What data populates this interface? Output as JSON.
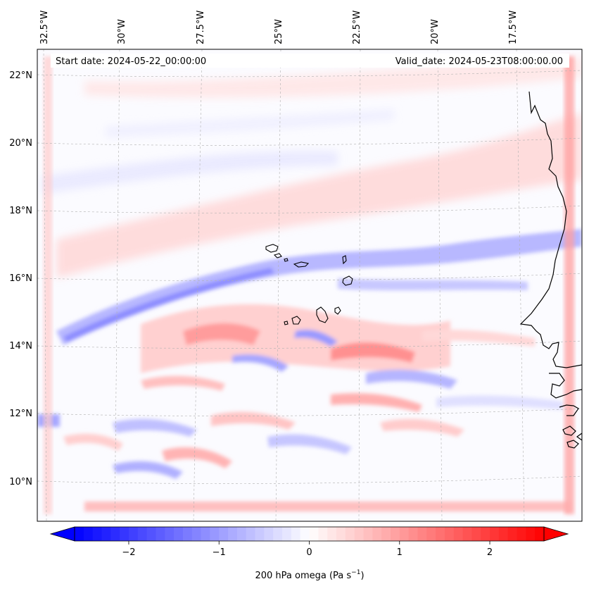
{
  "map": {
    "start_date_label": "Start date: 2024-05-22_00:00:00",
    "valid_date_label": "Valid_date: 2024-05-23T08:00:00.00",
    "top_longitude_labels": [
      "32.5°W",
      "30°W",
      "27.5°W",
      "25°W",
      "22.5°W",
      "20°W",
      "17.5°W"
    ],
    "left_latitude_labels": [
      "22°N",
      "20°N",
      "18°N",
      "16°N",
      "14°N",
      "12°N",
      "10°N"
    ],
    "field": "200 hPa omega",
    "gridlines": true
  },
  "colorbar": {
    "label_text": "200 hPa omega (Pa s",
    "label_exponent": "−1",
    "label_suffix": ")",
    "ticks": [
      "−2",
      "−1",
      "0",
      "1",
      "2"
    ],
    "tick_values": [
      -2,
      -1,
      0,
      1,
      2
    ],
    "range": [
      -2.6,
      2.6
    ],
    "extend": "both",
    "colormap": "bwr",
    "color_low": "#0000ff",
    "color_mid": "#ffffff",
    "color_high": "#ff0000"
  },
  "colors": {
    "coastline": "#000000",
    "gridline": "#b0b0b0"
  }
}
